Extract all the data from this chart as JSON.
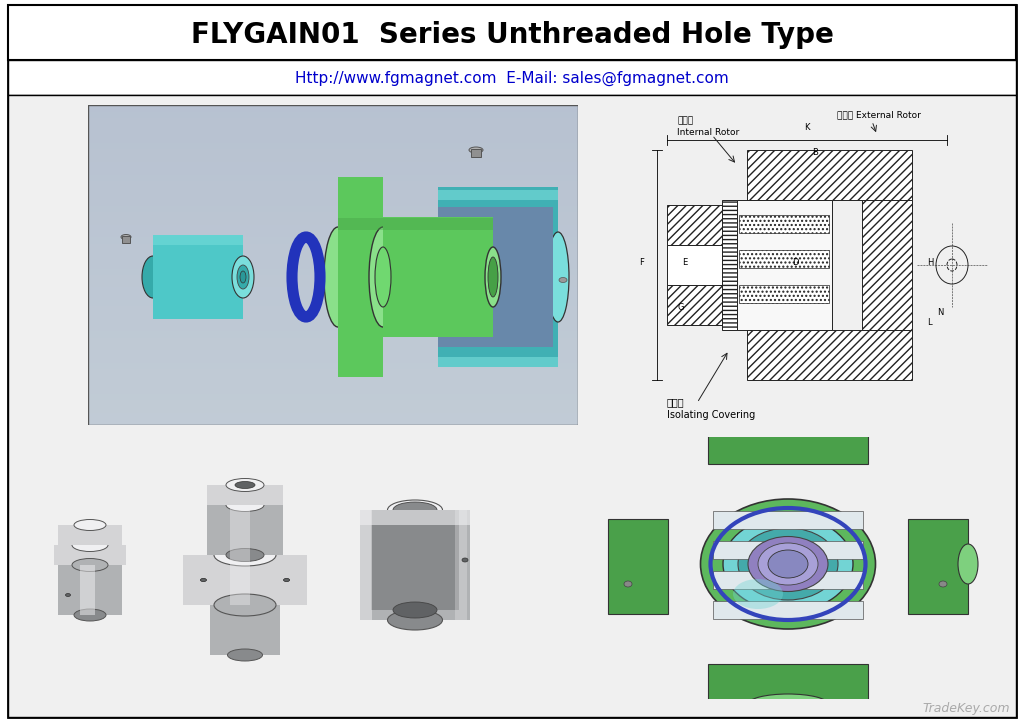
{
  "title": "FLYGAIN01  Series Unthreaded Hole Type",
  "subtitle": "Http://www.fgmagnet.com  E-Mail: sales@fgmagnet.com",
  "title_fontsize": 20,
  "subtitle_fontsize": 11,
  "title_color": "#000000",
  "subtitle_color": "#0000cc",
  "background_color": "#ffffff",
  "border_color": "#000000",
  "watermark": "TradeKey.com",
  "watermark_color": "#aaaaaa",
  "watermark_fontsize": 9,
  "fig_width": 10.24,
  "fig_height": 7.24,
  "dpi": 100,
  "label_internal_rotor_cn": "内转子",
  "label_internal_rotor_en": "Internal Rotor",
  "label_external_rotor_cn": "外转子 External Rotor",
  "label_isolating_cn": "隔离套",
  "label_isolating_en": "Isolating Covering"
}
